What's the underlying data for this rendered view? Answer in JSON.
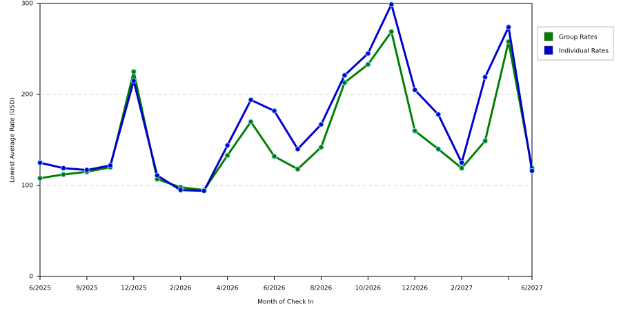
{
  "chart_data": {
    "type": "line",
    "x_label": "Month of Check In",
    "y_label": "Lowest Average Rate (USD)",
    "categories": [
      "6/2025",
      null,
      "9/2025",
      null,
      "12/2025",
      null,
      "2/2026",
      null,
      "4/2026",
      null,
      "6/2026",
      null,
      "8/2026",
      null,
      "10/2026",
      null,
      "12/2026",
      null,
      "2/2027",
      null,
      null,
      "6/2027"
    ],
    "series": [
      {
        "name": "Group Rates",
        "color": "#008000",
        "values": [
          108,
          112,
          115,
          120,
          225,
          107,
          98,
          95,
          133,
          170,
          132,
          118,
          142,
          213,
          233,
          269,
          160,
          140,
          119,
          149,
          258,
          119
        ]
      },
      {
        "name": "Individual Rates",
        "color": "#0000d0",
        "values": [
          125,
          119,
          117,
          122,
          215,
          111,
          95,
          94,
          144,
          194,
          182,
          140,
          167,
          221,
          245,
          299,
          205,
          178,
          125,
          219,
          274,
          116
        ]
      }
    ],
    "ylim": [
      0,
      300
    ],
    "yticks": [
      0,
      100,
      200,
      300
    ],
    "grid": true,
    "legend": "right"
  }
}
